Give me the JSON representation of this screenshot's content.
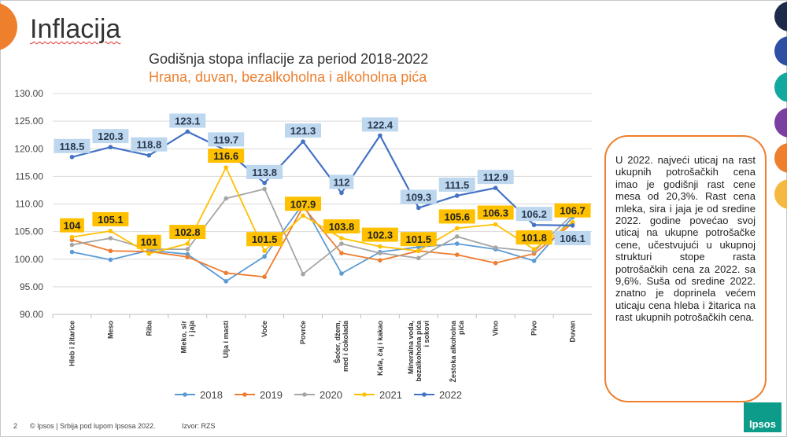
{
  "slide": {
    "title": "Inflacija",
    "page_number": "2",
    "footer_copyright": "© Ipsos | Srbija pod lupom Ipsosa 2022.",
    "footer_source": "Izvor: RZS",
    "logo_text": "Ipsos",
    "accent_color": "#ee7f2d",
    "side_dot_colors": [
      "#1d2b4a",
      "#2e4fa3",
      "#13a89e",
      "#7a3fa0",
      "#ee7f2d",
      "#f5b942"
    ]
  },
  "note": {
    "text": "U 2022. najveći uticaj na rast ukupnih potrošačkih cena imao je godišnji rast cene mesa od 20,3%. Rast cena mleka, sira i jaja je od sredine 2022. godine povećao svoj uticaj na ukupne potrošačke cene, učestvujući u ukupnoj strukturi stope rasta potrošačkih cena za 2022. sa 9,6%. Suša od sredine 2022. znatno je doprinela većem uticaju cena hleba i žitarica na rast ukupnih potrošačkih cena."
  },
  "chart_data": {
    "type": "line",
    "title": "Godišnja stopa inflacije za period 2018-2022",
    "subtitle": "Hrana, duvan, bezalkoholna i alkoholna pića",
    "categories": [
      "Hleb i žitarice",
      "Meso",
      "Riba",
      "Mleko, sir i jaja",
      "Ulja i masti",
      "Voće",
      "Povrće",
      "Šećer, džem, med i čokolada",
      "Kafa, čaj i kakao",
      "Mineralna voda, bezalkoholna pića i sokovi",
      "Žestoka alkoholna pića",
      "Vino",
      "Pivo",
      "Duvan"
    ],
    "ylim": [
      90,
      130
    ],
    "yticks": [
      "90.00",
      "95.00",
      "100.00",
      "105.00",
      "110.00",
      "115.00",
      "120.00",
      "125.00",
      "130.00"
    ],
    "grid": true,
    "legend_position": "bottom",
    "series": [
      {
        "name": "2018",
        "color": "#5b9bd5",
        "values": [
          101.3,
          99.9,
          101.6,
          100.9,
          96.0,
          100.5,
          110.0,
          97.4,
          101.3,
          102.2,
          102.8,
          101.8,
          99.7,
          107.6
        ]
      },
      {
        "name": "2019",
        "color": "#ed7d31",
        "values": [
          103.5,
          101.5,
          101.4,
          100.4,
          97.5,
          96.8,
          109.5,
          101.1,
          99.8,
          101.5,
          100.8,
          99.3,
          101.0,
          106.5
        ]
      },
      {
        "name": "2020",
        "color": "#a5a5a5",
        "values": [
          102.6,
          103.8,
          101.8,
          101.8,
          111.0,
          112.7,
          97.3,
          102.8,
          101.1,
          100.2,
          104.1,
          102.1,
          101.4,
          108.1
        ]
      },
      {
        "name": "2021",
        "color": "#ffc000",
        "values": [
          104.0,
          105.1,
          101.0,
          102.8,
          116.6,
          101.5,
          107.9,
          103.8,
          102.3,
          101.5,
          105.6,
          106.3,
          101.8,
          106.7
        ]
      },
      {
        "name": "2022",
        "color": "#4472c4",
        "values": [
          118.5,
          120.3,
          118.8,
          123.1,
          119.7,
          113.8,
          121.3,
          112.0,
          122.4,
          109.3,
          111.5,
          112.9,
          106.2,
          106.1
        ]
      }
    ],
    "data_labels": {
      "2022": [
        "118.5",
        "120.3",
        "118.8",
        "123.1",
        "119.7",
        "113.8",
        "121.3",
        "112",
        "122.4",
        "109.3",
        "111.5",
        "112.9",
        "106.2",
        "106.1"
      ],
      "2021": [
        "104",
        "105.1",
        "101",
        "102.8",
        "116.6",
        "101.5",
        "107.9",
        "103.8",
        "102.3",
        "101.5",
        "105.6",
        "106.3",
        "101.8",
        "106.7"
      ]
    },
    "data_label_colors": {
      "2022": "#bdd7ee",
      "2021": "#ffc000"
    }
  }
}
